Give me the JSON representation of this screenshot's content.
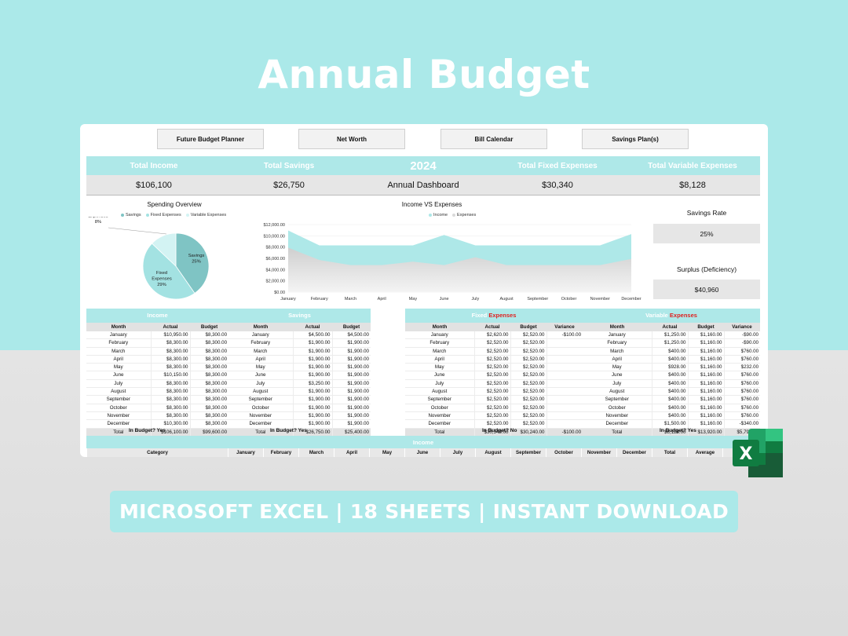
{
  "headline": "Annual Budget",
  "nav": [
    "Future Budget Planner",
    "Net Worth",
    "Bill Calendar",
    "Savings Plan(s)"
  ],
  "kpi": {
    "labels": [
      "Total Income",
      "Total Savings",
      "2024",
      "Total Fixed Expenses",
      "Total Variable Expenses"
    ],
    "values": [
      "$106,100",
      "$26,750",
      "Annual Dashboard",
      "$30,340",
      "$8,128"
    ]
  },
  "pie": {
    "title": "Spending Overview",
    "legend": [
      "Savings",
      "Fixed Expenses",
      "Variable Expenses"
    ],
    "labels": {
      "variable": [
        "Variable",
        "Expenses",
        "8%"
      ],
      "fixed": [
        "Fixed",
        "Expenses",
        "29%"
      ],
      "savings": [
        "Savings",
        "25%"
      ]
    }
  },
  "area": {
    "title": "Income VS Expenses",
    "legend": [
      "Income",
      "Expenses"
    ],
    "yticks": [
      "$12,000.00",
      "$10,000.00",
      "$8,000.00",
      "$6,000.00",
      "$4,000.00",
      "$2,000.00",
      "$0.00"
    ],
    "months": [
      "January",
      "February",
      "March",
      "April",
      "May",
      "June",
      "July",
      "August",
      "September",
      "October",
      "November",
      "December"
    ]
  },
  "chart_data": [
    {
      "type": "pie",
      "title": "Spending Overview",
      "slices": [
        {
          "name": "Savings",
          "value": 25
        },
        {
          "name": "Fixed Expenses",
          "value": 29
        },
        {
          "name": "Variable Expenses",
          "value": 8
        }
      ]
    },
    {
      "type": "area",
      "title": "Income VS Expenses",
      "categories": [
        "January",
        "February",
        "March",
        "April",
        "May",
        "June",
        "July",
        "August",
        "September",
        "October",
        "November",
        "December"
      ],
      "ylim": [
        0,
        12000
      ],
      "series": [
        {
          "name": "Income",
          "values": [
            10950,
            8300,
            8300,
            8300,
            8300,
            10150,
            8300,
            8300,
            8300,
            8300,
            8300,
            10300
          ]
        },
        {
          "name": "Expenses",
          "values": [
            7900,
            5700,
            4800,
            4800,
            5400,
            4800,
            6200,
            4800,
            4800,
            4800,
            4800,
            5900
          ]
        }
      ]
    }
  ],
  "side": {
    "savings_rate_label": "Savings Rate",
    "savings_rate_value": "25%",
    "surplus_label": "Surplus (Deficiency)",
    "surplus_value": "$40,960"
  },
  "tables": {
    "income": {
      "title": "Income",
      "cols": [
        "Month",
        "Actual",
        "Budget"
      ],
      "rows": [
        [
          "January",
          "$10,950.00",
          "$8,300.00"
        ],
        [
          "February",
          "$8,300.00",
          "$8,300.00"
        ],
        [
          "March",
          "$8,300.00",
          "$8,300.00"
        ],
        [
          "April",
          "$8,300.00",
          "$8,300.00"
        ],
        [
          "May",
          "$8,300.00",
          "$8,300.00"
        ],
        [
          "June",
          "$10,150.00",
          "$8,300.00"
        ],
        [
          "July",
          "$8,300.00",
          "$8,300.00"
        ],
        [
          "August",
          "$8,300.00",
          "$8,300.00"
        ],
        [
          "September",
          "$8,300.00",
          "$8,300.00"
        ],
        [
          "October",
          "$8,300.00",
          "$8,300.00"
        ],
        [
          "November",
          "$8,300.00",
          "$8,300.00"
        ],
        [
          "December",
          "$10,300.00",
          "$8,300.00"
        ]
      ],
      "total": [
        "Total",
        "$106,100.00",
        "$99,600.00"
      ],
      "in_budget": "In Budget?  Yes"
    },
    "savings": {
      "title": "Savings",
      "cols": [
        "Month",
        "Actual",
        "Budget"
      ],
      "rows": [
        [
          "January",
          "$4,500.00",
          "$4,500.00"
        ],
        [
          "February",
          "$1,900.00",
          "$1,900.00"
        ],
        [
          "March",
          "$1,900.00",
          "$1,900.00"
        ],
        [
          "April",
          "$1,900.00",
          "$1,900.00"
        ],
        [
          "May",
          "$1,900.00",
          "$1,900.00"
        ],
        [
          "June",
          "$1,900.00",
          "$1,900.00"
        ],
        [
          "July",
          "$3,250.00",
          "$1,900.00"
        ],
        [
          "August",
          "$1,900.00",
          "$1,900.00"
        ],
        [
          "September",
          "$1,900.00",
          "$1,900.00"
        ],
        [
          "October",
          "$1,900.00",
          "$1,900.00"
        ],
        [
          "November",
          "$1,900.00",
          "$1,900.00"
        ],
        [
          "December",
          "$1,900.00",
          "$1,900.00"
        ]
      ],
      "total": [
        "Total",
        "$26,750.00",
        "$25,400.00"
      ],
      "in_budget": "In Budget?  Yes"
    },
    "fixed": {
      "title_a": "Fixed ",
      "title_b": "Expenses",
      "cols": [
        "Month",
        "Actual",
        "Budget",
        "Variance"
      ],
      "rows": [
        [
          "January",
          "$2,620.00",
          "$2,520.00",
          "-$100.00"
        ],
        [
          "February",
          "$2,520.00",
          "$2,520.00",
          ""
        ],
        [
          "March",
          "$2,520.00",
          "$2,520.00",
          ""
        ],
        [
          "April",
          "$2,520.00",
          "$2,520.00",
          ""
        ],
        [
          "May",
          "$2,520.00",
          "$2,520.00",
          ""
        ],
        [
          "June",
          "$2,520.00",
          "$2,520.00",
          ""
        ],
        [
          "July",
          "$2,520.00",
          "$2,520.00",
          ""
        ],
        [
          "August",
          "$2,520.00",
          "$2,520.00",
          ""
        ],
        [
          "September",
          "$2,520.00",
          "$2,520.00",
          ""
        ],
        [
          "October",
          "$2,520.00",
          "$2,520.00",
          ""
        ],
        [
          "November",
          "$2,520.00",
          "$2,520.00",
          ""
        ],
        [
          "December",
          "$2,520.00",
          "$2,520.00",
          ""
        ]
      ],
      "total": [
        "Total",
        "$30,340.00",
        "$30,240.00",
        "-$100.00"
      ],
      "in_budget": "In Budget?  No"
    },
    "variable": {
      "title_a": "Variable ",
      "title_b": "Expenses",
      "cols": [
        "Month",
        "Actual",
        "Budget",
        "Variance"
      ],
      "rows": [
        [
          "January",
          "$1,250.00",
          "$1,160.00",
          "-$90.00"
        ],
        [
          "February",
          "$1,250.00",
          "$1,160.00",
          "-$90.00"
        ],
        [
          "March",
          "$400.00",
          "$1,160.00",
          "$760.00"
        ],
        [
          "April",
          "$400.00",
          "$1,160.00",
          "$760.00"
        ],
        [
          "May",
          "$928.00",
          "$1,160.00",
          "$232.00"
        ],
        [
          "June",
          "$400.00",
          "$1,160.00",
          "$760.00"
        ],
        [
          "July",
          "$400.00",
          "$1,160.00",
          "$760.00"
        ],
        [
          "August",
          "$400.00",
          "$1,160.00",
          "$760.00"
        ],
        [
          "September",
          "$400.00",
          "$1,160.00",
          "$760.00"
        ],
        [
          "October",
          "$400.00",
          "$1,160.00",
          "$760.00"
        ],
        [
          "November",
          "$400.00",
          "$1,160.00",
          "$760.00"
        ],
        [
          "December",
          "$1,500.00",
          "$1,160.00",
          "-$340.00"
        ]
      ],
      "total": [
        "Total",
        "$8,128.00",
        "$13,920.00",
        "$5,792.00"
      ],
      "in_budget": "In Budget?  Yes"
    }
  },
  "bottom": {
    "band": "Income",
    "cols": [
      "Category",
      "January",
      "February",
      "March",
      "April",
      "May",
      "June",
      "July",
      "August",
      "September",
      "October",
      "November",
      "December",
      "Total",
      "Average",
      "Pe"
    ]
  },
  "excel_icon_letter": "X",
  "banner": "MICROSOFT EXCEL | 18 SHEETS | INSTANT DOWNLOAD",
  "colors": {
    "accent": "#abe9e9",
    "teal_dark": "#7fc4c4",
    "grey": "#e6e6e6",
    "red": "#e0201f",
    "excel_green": "#1e7145"
  }
}
